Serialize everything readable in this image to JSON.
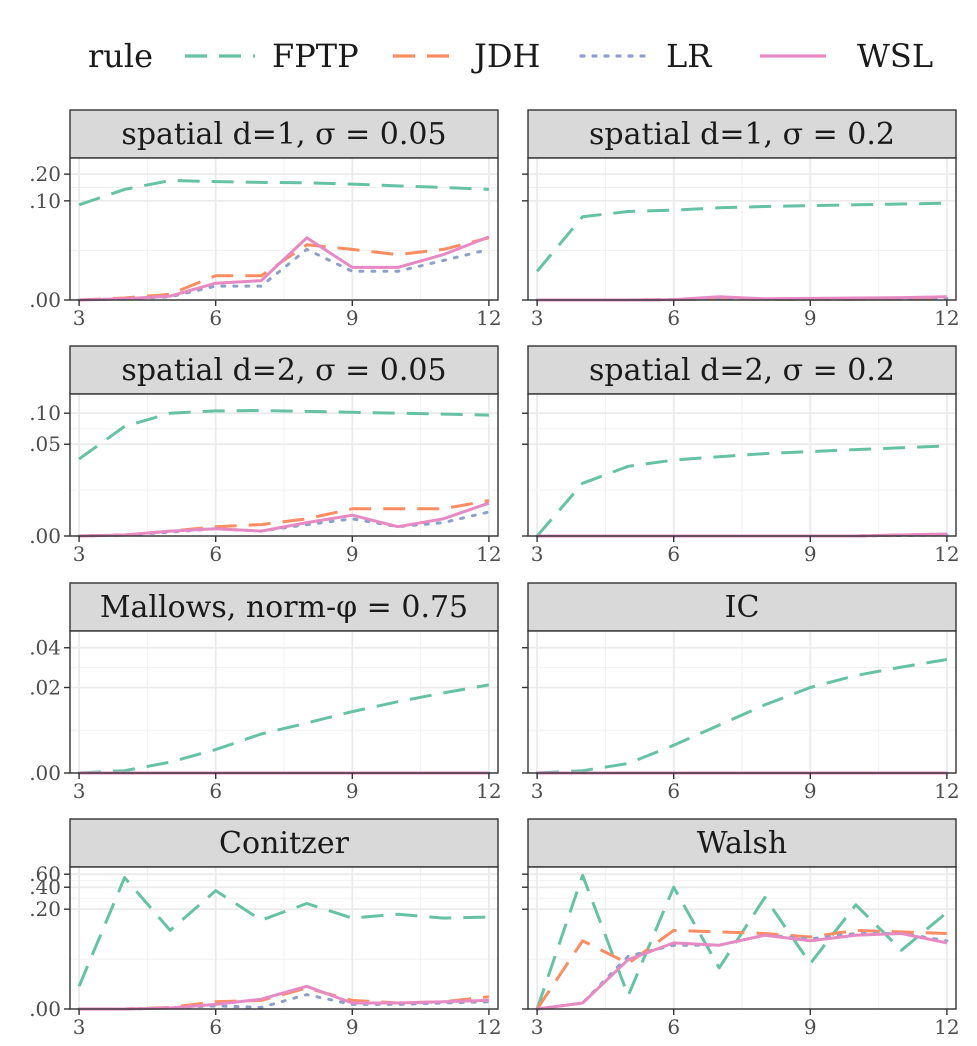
{
  "chart_data": {
    "type": "line",
    "legend": {
      "title": "rule",
      "position": "top",
      "entries": [
        {
          "name": "FPTP",
          "color": "#66c2a5",
          "linetype": "dashed"
        },
        {
          "name": "JDH",
          "color": "#fc8d62",
          "linetype": "dashed"
        },
        {
          "name": "LR",
          "color": "#8da0cb",
          "linetype": "dotted"
        },
        {
          "name": "WSL",
          "color": "#e78ac3",
          "linetype": "solid"
        }
      ]
    },
    "x": [
      3,
      4,
      5,
      6,
      7,
      8,
      9,
      10,
      11,
      12
    ],
    "x_ticks": [
      3,
      6,
      9,
      12
    ],
    "y_scale": "pseudo-log",
    "panels": [
      {
        "title": "spatial d=1, σ = 0.05",
        "y_ticks": [
          ".00",
          ".10",
          ".20"
        ],
        "y_tick_values": [
          0,
          0.1,
          0.2
        ],
        "y_range": [
          0,
          0.3
        ],
        "series": [
          {
            "name": "FPTP",
            "values": [
              0.09,
              0.135,
              0.17,
              0.165,
              0.162,
              0.16,
              0.155,
              0.148,
              0.142,
              0.135
            ]
          },
          {
            "name": "JDH",
            "values": [
              0.0,
              0.0005,
              0.0015,
              0.008,
              0.008,
              0.028,
              0.024,
              0.02,
              0.024,
              0.035
            ]
          },
          {
            "name": "LR",
            "values": [
              0.0,
              0.0003,
              0.0008,
              0.004,
              0.004,
              0.024,
              0.01,
              0.01,
              0.016,
              0.024
            ]
          },
          {
            "name": "WSL",
            "values": [
              0.0,
              0.0003,
              0.001,
              0.005,
              0.006,
              0.035,
              0.012,
              0.012,
              0.02,
              0.036
            ]
          }
        ]
      },
      {
        "title": "spatial d=1, σ = 0.2",
        "y_ticks": [
          "",
          "",
          ""
        ],
        "y_tick_values": [
          0,
          0.1,
          0.2
        ],
        "y_range": [
          0,
          0.3
        ],
        "series": [
          {
            "name": "FPTP",
            "values": [
              0.01,
              0.065,
              0.075,
              0.078,
              0.083,
              0.086,
              0.088,
              0.09,
              0.092,
              0.094
            ]
          },
          {
            "name": "JDH",
            "values": [
              0.0,
              0.0,
              0.0,
              0.0001,
              0.0003,
              0.0002,
              0.0002,
              0.0002,
              0.0003,
              0.0004
            ]
          },
          {
            "name": "LR",
            "values": [
              0.0,
              0.0,
              0.0,
              0.0001,
              0.0003,
              0.0002,
              0.0002,
              0.0002,
              0.0003,
              0.0004
            ]
          },
          {
            "name": "WSL",
            "values": [
              0.0,
              0.0,
              0.0,
              0.0001,
              0.0008,
              0.0003,
              0.0004,
              0.0005,
              0.0006,
              0.0008
            ]
          }
        ]
      },
      {
        "title": "spatial d=2, σ = 0.05",
        "y_ticks": [
          ".00",
          ".05",
          ".10"
        ],
        "y_tick_values": [
          0,
          0.05,
          0.1
        ],
        "y_range": [
          0,
          0.15
        ],
        "series": [
          {
            "name": "FPTP",
            "values": [
              0.035,
              0.075,
              0.1,
              0.105,
              0.106,
              0.104,
              0.102,
              0.1,
              0.098,
              0.096
            ]
          },
          {
            "name": "JDH",
            "values": [
              0.0,
              0.0002,
              0.001,
              0.002,
              0.0025,
              0.004,
              0.007,
              0.007,
              0.007,
              0.01
            ]
          },
          {
            "name": "LR",
            "values": [
              0.0,
              0.0002,
              0.0008,
              0.0015,
              0.001,
              0.0025,
              0.004,
              0.002,
              0.003,
              0.006
            ]
          },
          {
            "name": "WSL",
            "values": [
              0.0,
              0.0002,
              0.001,
              0.0015,
              0.001,
              0.003,
              0.005,
              0.002,
              0.004,
              0.009
            ]
          }
        ]
      },
      {
        "title": "spatial d=2, σ = 0.2",
        "y_ticks": [
          "",
          "",
          ""
        ],
        "y_tick_values": [
          0,
          0.05,
          0.1
        ],
        "y_range": [
          0,
          0.15
        ],
        "series": [
          {
            "name": "FPTP",
            "values": [
              0.0,
              0.018,
              0.029,
              0.034,
              0.037,
              0.04,
              0.042,
              0.044,
              0.046,
              0.048
            ]
          },
          {
            "name": "JDH",
            "values": [
              0.0,
              0.0,
              0.0,
              0.0,
              0.0,
              0.0,
              0.0,
              0.0,
              0.0002,
              0.0004
            ]
          },
          {
            "name": "LR",
            "values": [
              0.0,
              0.0,
              0.0,
              0.0,
              0.0,
              0.0,
              0.0,
              0.0,
              0.0001,
              0.0002
            ]
          },
          {
            "name": "WSL",
            "values": [
              0.0,
              0.0,
              0.0,
              0.0,
              0.0,
              0.0,
              0.0,
              0.0,
              0.0002,
              0.0004
            ]
          }
        ]
      },
      {
        "title": "Mallows, norm-φ = 0.75",
        "y_ticks": [
          ".00",
          ".02",
          ".04"
        ],
        "y_tick_values": [
          0,
          0.02,
          0.04
        ],
        "y_range": [
          0,
          0.052
        ],
        "series": [
          {
            "name": "FPTP",
            "values": [
              0.0,
              0.0003,
              0.0015,
              0.0035,
              0.0065,
              0.009,
              0.012,
              0.015,
              0.018,
              0.021
            ]
          },
          {
            "name": "JDH",
            "values": [
              0,
              0,
              0,
              0,
              0,
              0,
              0,
              0,
              0,
              0
            ]
          },
          {
            "name": "LR",
            "values": [
              0,
              0,
              0,
              0,
              0,
              0,
              0,
              0,
              0,
              0
            ]
          },
          {
            "name": "WSL",
            "values": [
              0,
              0,
              0,
              0,
              0,
              0,
              0,
              0,
              0,
              0
            ]
          }
        ]
      },
      {
        "title": "IC",
        "y_ticks": [
          "",
          "",
          ""
        ],
        "y_tick_values": [
          0,
          0.02,
          0.04
        ],
        "y_range": [
          0,
          0.052
        ],
        "series": [
          {
            "name": "FPTP",
            "values": [
              0.0,
              0.0003,
              0.0013,
              0.0043,
              0.0085,
              0.014,
              0.02,
              0.025,
              0.029,
              0.033
            ]
          },
          {
            "name": "JDH",
            "values": [
              0,
              0,
              0,
              0,
              0,
              0,
              0,
              0,
              0,
              0
            ]
          },
          {
            "name": "LR",
            "values": [
              0,
              0,
              0,
              0,
              0,
              0,
              0,
              0,
              0,
              0
            ]
          },
          {
            "name": "WSL",
            "values": [
              0,
              0,
              0,
              0,
              0,
              0,
              0,
              0,
              0,
              0
            ]
          }
        ]
      },
      {
        "title": "Conitzer",
        "y_ticks": [
          ".00",
          ".20",
          ".40",
          ".60"
        ],
        "y_tick_values": [
          0,
          0.2,
          0.4,
          0.6
        ],
        "y_range": [
          0,
          0.75
        ],
        "series": [
          {
            "name": "FPTP",
            "values": [
              0.01,
              0.54,
              0.1,
              0.36,
              0.14,
              0.24,
              0.15,
              0.17,
              0.15,
              0.155
            ]
          },
          {
            "name": "JDH",
            "values": [
              0.0,
              0.0,
              0.0005,
              0.0025,
              0.003,
              0.009,
              0.003,
              0.002,
              0.0025,
              0.0045
            ]
          },
          {
            "name": "LR",
            "values": [
              0.0,
              0.0,
              0.0003,
              0.001,
              0.0005,
              0.0055,
              0.0015,
              0.0015,
              0.002,
              0.0025
            ]
          },
          {
            "name": "WSL",
            "values": [
              0.0,
              0.0,
              0.0003,
              0.0015,
              0.0035,
              0.01,
              0.002,
              0.002,
              0.0025,
              0.003
            ]
          }
        ]
      },
      {
        "title": "Walsh",
        "y_ticks": [
          "",
          "",
          "",
          ""
        ],
        "y_tick_values": [
          0,
          0.2,
          0.4,
          0.6
        ],
        "y_range": [
          0,
          0.75
        ],
        "series": [
          {
            "name": "FPTP",
            "values": [
              0.0,
              0.58,
              0.005,
              0.4,
              0.025,
              0.29,
              0.03,
              0.23,
              0.05,
              0.18
            ]
          },
          {
            "name": "JDH",
            "values": [
              0.0,
              0.07,
              0.03,
              0.1,
              0.095,
              0.09,
              0.08,
              0.1,
              0.095,
              0.09
            ]
          },
          {
            "name": "LR",
            "values": [
              0.0,
              0.002,
              0.04,
              0.06,
              0.06,
              0.085,
              0.075,
              0.09,
              0.09,
              0.07
            ]
          },
          {
            "name": "WSL",
            "values": [
              0.0,
              0.002,
              0.035,
              0.065,
              0.06,
              0.085,
              0.07,
              0.085,
              0.09,
              0.065
            ]
          }
        ]
      }
    ]
  }
}
